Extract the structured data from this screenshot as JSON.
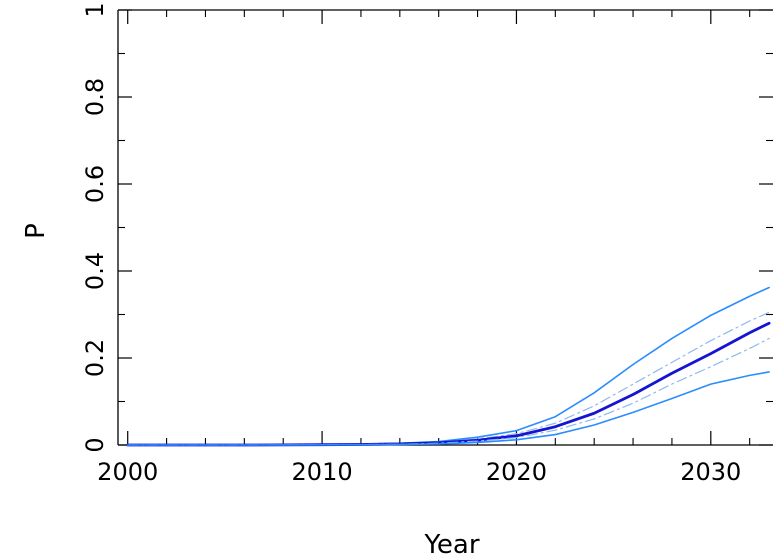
{
  "chart_data": {
    "type": "line",
    "xlabel": "Year",
    "ylabel": "P",
    "xlim": [
      1999.5,
      2033.2
    ],
    "ylim": [
      0,
      1
    ],
    "x_ticks": [
      {
        "value": 2000,
        "label": "2000"
      },
      {
        "value": 2010,
        "label": "2010"
      },
      {
        "value": 2020,
        "label": "2020"
      },
      {
        "value": 2030,
        "label": "2030"
      }
    ],
    "y_ticks": [
      {
        "value": 0,
        "label": "0"
      },
      {
        "value": 0.2,
        "label": "0.2"
      },
      {
        "value": 0.4,
        "label": "0.4"
      },
      {
        "value": 0.6,
        "label": "0.6"
      },
      {
        "value": 0.8,
        "label": "0.8"
      },
      {
        "value": 1,
        "label": "1"
      }
    ],
    "x_minor_step": 2,
    "y_minor_step": 0.1,
    "grid": false,
    "x": [
      2000,
      2002,
      2004,
      2006,
      2008,
      2010,
      2012,
      2014,
      2016,
      2018,
      2020,
      2022,
      2024,
      2026,
      2028,
      2030,
      2032,
      2033
    ],
    "series": [
      {
        "style": "outer",
        "color": "#2a8cff",
        "values": [
          0,
          0,
          0,
          0,
          0.0005,
          0.001,
          0.002,
          0.004,
          0.008,
          0.018,
          0.033,
          0.065,
          0.12,
          0.185,
          0.245,
          0.298,
          0.342,
          0.362
        ]
      },
      {
        "style": "inner-dashed",
        "color": "#8fb8f0",
        "values": [
          0,
          0,
          0,
          0,
          0.0004,
          0.0008,
          0.0015,
          0.003,
          0.006,
          0.014,
          0.026,
          0.05,
          0.09,
          0.14,
          0.19,
          0.24,
          0.285,
          0.305
        ]
      },
      {
        "style": "median",
        "color": "#1414d2",
        "values": [
          0,
          0,
          0,
          0,
          0.0003,
          0.0007,
          0.0012,
          0.0025,
          0.005,
          0.011,
          0.021,
          0.042,
          0.073,
          0.116,
          0.165,
          0.21,
          0.258,
          0.28
        ]
      },
      {
        "style": "inner-dashed",
        "color": "#8fb8f0",
        "values": [
          0,
          0,
          0,
          0,
          0.0002,
          0.0005,
          0.001,
          0.002,
          0.004,
          0.009,
          0.017,
          0.034,
          0.06,
          0.096,
          0.14,
          0.18,
          0.222,
          0.245
        ]
      },
      {
        "style": "outer",
        "color": "#2a8cff",
        "values": [
          0,
          0,
          0,
          0,
          0.0001,
          0.0003,
          0.0006,
          0.0012,
          0.0025,
          0.006,
          0.012,
          0.024,
          0.046,
          0.075,
          0.107,
          0.14,
          0.16,
          0.168
        ]
      }
    ]
  }
}
